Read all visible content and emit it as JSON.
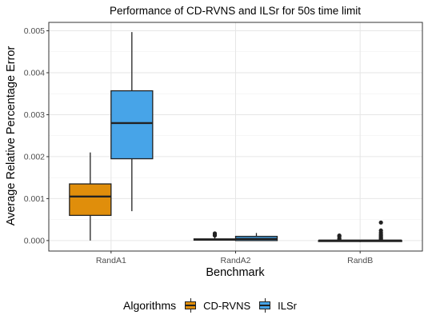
{
  "chart_data": {
    "type": "box",
    "title": "Performance of CD-RVNS and ILSr for 50s time limit",
    "xlabel": "Benchmark",
    "ylabel": "Average Relative Percentage Error",
    "categories": [
      "RandA1",
      "RandA2",
      "RandB"
    ],
    "ylim": [
      -0.00025,
      0.0052
    ],
    "yticks": [
      0.0,
      0.001,
      0.002,
      0.003,
      0.004,
      0.005
    ],
    "ytick_labels": [
      "0.000",
      "0.001",
      "0.002",
      "0.003",
      "0.004",
      "0.005"
    ],
    "grid": true,
    "legend": {
      "title": "Algorithms",
      "position": "bottom"
    },
    "series": [
      {
        "name": "CD-RVNS",
        "color": "#E08E0B",
        "boxes": [
          {
            "category": "RandA1",
            "min": 0.0,
            "q1": 0.0006,
            "median": 0.00105,
            "q3": 0.00135,
            "max": 0.0021,
            "outliers": []
          },
          {
            "category": "RandA2",
            "min": 0.0,
            "q1": 1e-05,
            "median": 2e-05,
            "q3": 4e-05,
            "max": 9e-05,
            "outliers": [
              0.00012,
              0.00015,
              0.00017
            ]
          },
          {
            "category": "RandB",
            "min": 0.0,
            "q1": 0.0,
            "median": 0.0,
            "q3": 0.0,
            "max": 0.0,
            "outliers": [
              2e-05,
              5e-05,
              0.0001,
              0.00012
            ]
          }
        ]
      },
      {
        "name": "ILSr",
        "color": "#47A4E8",
        "boxes": [
          {
            "category": "RandA1",
            "min": 0.0007,
            "q1": 0.00195,
            "median": 0.0028,
            "q3": 0.00357,
            "max": 0.00497,
            "outliers": []
          },
          {
            "category": "RandA2",
            "min": 0.0,
            "q1": 0.0,
            "median": 4e-05,
            "q3": 0.0001,
            "max": 0.00018,
            "outliers": []
          },
          {
            "category": "RandB",
            "min": 0.0,
            "q1": 0.0,
            "median": 0.0,
            "q3": 0.0,
            "max": 0.0,
            "outliers": [
              2e-05,
              4e-05,
              6e-05,
              9e-05,
              0.00012,
              0.00015,
              0.00019,
              0.00024,
              0.00043
            ]
          }
        ]
      }
    ]
  }
}
